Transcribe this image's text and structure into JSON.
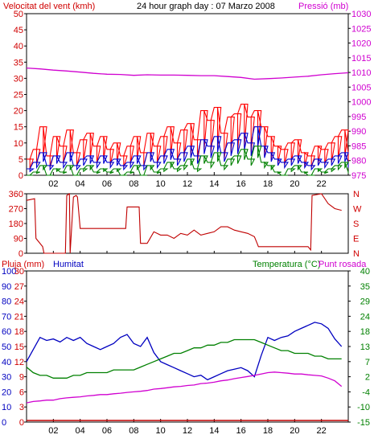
{
  "header": {
    "wind_label": "Velocitat del vent (kmh)",
    "title": "24 hour graph day : 07 Marzo 2008",
    "pressure_label": "Pressió (mb)"
  },
  "bottom_header": {
    "rain_label": "Pluja (mm)",
    "humidity_label": "Humitat",
    "temperature_label": "Temperatura (°C)",
    "dewpoint_label": "Punt rosada"
  },
  "colors": {
    "wind_gust": "#ff0000",
    "wind_avg": "#0000d0",
    "wind_min": "#008000",
    "pressure": "#d000d0",
    "direction": "#c00000",
    "humidity": "#0000c0",
    "temperature": "#008000",
    "dewpoint": "#d000d0",
    "rain": "#c00000"
  },
  "chart_data": [
    {
      "type": "line",
      "title": "24 hour graph day : 07 Marzo 2008",
      "ylabel": "Velocitat del vent (kmh)",
      "ylabel_right": "Pressió (mb)",
      "x_ticks": [
        "02",
        "04",
        "06",
        "08",
        "10",
        "12",
        "14",
        "16",
        "18",
        "20",
        "22"
      ],
      "ylim": [
        0,
        50
      ],
      "y_ticks": [
        0,
        5,
        10,
        15,
        20,
        25,
        30,
        35,
        40,
        45,
        50
      ],
      "ylim_right": [
        975,
        1030
      ],
      "y_ticks_right": [
        975,
        980,
        985,
        990,
        995,
        1000,
        1005,
        1010,
        1015,
        1020,
        1025,
        1030
      ],
      "xlim": [
        0,
        24
      ],
      "series": [
        {
          "name": "Pressió (mb)",
          "axis": "right",
          "x": [
            0,
            1,
            2,
            3,
            4,
            5,
            6,
            7,
            8,
            9,
            10,
            11,
            12,
            13,
            14,
            15,
            16,
            17,
            18,
            19,
            20,
            21,
            22,
            23,
            24
          ],
          "values": [
            1011.5,
            1011.2,
            1010.8,
            1010.5,
            1010.1,
            1009.7,
            1009.4,
            1009.3,
            1009.0,
            1009.2,
            1009.1,
            1009.1,
            1009.0,
            1008.9,
            1008.9,
            1008.6,
            1008.3,
            1007.7,
            1007.9,
            1008.1,
            1008.4,
            1008.7,
            1009.2,
            1009.6,
            1009.9
          ]
        },
        {
          "name": "gust",
          "axis": "left",
          "x": [
            0,
            0.5,
            1,
            1.5,
            2,
            2.5,
            3,
            3.5,
            4,
            4.5,
            5,
            5.5,
            6,
            6.5,
            7,
            7.5,
            8,
            8.5,
            9,
            9.5,
            10,
            10.5,
            11,
            11.5,
            12,
            12.5,
            13,
            13.5,
            14,
            14.5,
            15,
            15.5,
            16,
            16.5,
            17,
            17.5,
            18,
            18.5,
            19,
            19.5,
            20,
            20.5,
            21,
            21.5,
            22,
            22.5,
            23,
            23.5,
            24
          ],
          "values": [
            5,
            8,
            15,
            6,
            12,
            9,
            14,
            7,
            11,
            13,
            9,
            12,
            8,
            10,
            6,
            9,
            12,
            7,
            13,
            9,
            12,
            15,
            10,
            14,
            16,
            11,
            20,
            17,
            21,
            13,
            18,
            19,
            22,
            18,
            20,
            15,
            12,
            9,
            8,
            10,
            11,
            7,
            6,
            9,
            8,
            10,
            12,
            14,
            7
          ]
        },
        {
          "name": "avg",
          "axis": "left",
          "x": [
            0,
            0.5,
            1,
            1.5,
            2,
            2.5,
            3,
            3.5,
            4,
            4.5,
            5,
            5.5,
            6,
            6.5,
            7,
            7.5,
            8,
            8.5,
            9,
            9.5,
            10,
            10.5,
            11,
            11.5,
            12,
            12.5,
            13,
            13.5,
            14,
            14.5,
            15,
            15.5,
            16,
            16.5,
            17,
            17.5,
            18,
            18.5,
            19,
            19.5,
            20,
            20.5,
            21,
            21.5,
            22,
            22.5,
            23,
            23.5,
            24
          ],
          "values": [
            2,
            4,
            7,
            3,
            6,
            4,
            7,
            3,
            5,
            6,
            4,
            6,
            4,
            5,
            3,
            4,
            6,
            3,
            7,
            4,
            6,
            8,
            5,
            7,
            9,
            6,
            11,
            9,
            12,
            7,
            10,
            11,
            13,
            10,
            15,
            9,
            7,
            5,
            4,
            5,
            6,
            4,
            3,
            5,
            4,
            5,
            6,
            7,
            4
          ]
        },
        {
          "name": "min",
          "axis": "left",
          "x": [
            0,
            0.5,
            1,
            1.5,
            2,
            2.5,
            3,
            3.5,
            4,
            4.5,
            5,
            5.5,
            6,
            6.5,
            7,
            7.5,
            8,
            8.5,
            9,
            9.5,
            10,
            10.5,
            11,
            11.5,
            12,
            12.5,
            13,
            13.5,
            14,
            14.5,
            15,
            15.5,
            16,
            16.5,
            17,
            17.5,
            18,
            18.5,
            19,
            19.5,
            20,
            20.5,
            21,
            21.5,
            22,
            22.5,
            23,
            23.5,
            24
          ],
          "values": [
            0,
            1,
            3,
            0,
            2,
            1,
            3,
            0,
            2,
            3,
            1,
            2,
            1,
            2,
            0,
            1,
            3,
            0,
            3,
            1,
            2,
            4,
            2,
            3,
            5,
            2,
            6,
            4,
            7,
            3,
            5,
            6,
            8,
            5,
            9,
            4,
            3,
            1,
            0,
            2,
            3,
            1,
            0,
            2,
            1,
            2,
            3,
            4,
            1
          ]
        }
      ]
    },
    {
      "type": "line",
      "ylabel_right": [
        "N",
        "W",
        "S",
        "E",
        "N"
      ],
      "ylim": [
        0,
        360
      ],
      "y_ticks": [
        0,
        90,
        180,
        270,
        360
      ],
      "xlim": [
        0,
        24
      ],
      "series": [
        {
          "name": "wind direction",
          "x": [
            0,
            0.6,
            0.7,
            1.2,
            1.3,
            2.9,
            3.0,
            3.2,
            3.25,
            3.5,
            3.7,
            3.8,
            4.0,
            5.0,
            6.0,
            7.0,
            7.4,
            7.5,
            8.0,
            8.4,
            8.5,
            9.0,
            9.5,
            10.0,
            10.5,
            11.0,
            11.5,
            12.0,
            12.5,
            13.0,
            13.5,
            14.0,
            14.5,
            15.0,
            15.5,
            16.0,
            16.5,
            17.0,
            17.2,
            17.3,
            18.0,
            19.0,
            20.0,
            21.0,
            21.2,
            21.3,
            22.0,
            22.5,
            23.0,
            23.5
          ],
          "values": [
            320,
            330,
            90,
            40,
            0,
            0,
            350,
            360,
            0,
            340,
            350,
            340,
            150,
            150,
            150,
            150,
            150,
            280,
            280,
            280,
            60,
            60,
            130,
            110,
            110,
            90,
            120,
            110,
            140,
            110,
            120,
            130,
            160,
            160,
            140,
            130,
            120,
            100,
            60,
            40,
            40,
            40,
            40,
            40,
            20,
            350,
            360,
            300,
            270,
            260
          ]
        }
      ]
    },
    {
      "type": "line",
      "ylabel": "Pluja (mm)",
      "x_ticks": [
        "02",
        "04",
        "06",
        "08",
        "10",
        "12",
        "14",
        "16",
        "18",
        "20",
        "22"
      ],
      "xlim": [
        0,
        24
      ],
      "axis_left_humidity_ticks": [
        0,
        10,
        20,
        30,
        40,
        50,
        60,
        70,
        80,
        90,
        100
      ],
      "axis_left_rain_ticks": [
        0,
        3,
        6,
        9,
        12,
        15,
        18,
        21,
        24,
        27,
        30
      ],
      "axis_right_temperature_ticks": [
        -15,
        -10,
        -4,
        2,
        7,
        13,
        18,
        24,
        29,
        35,
        40
      ],
      "ylim_humidity": [
        0,
        100
      ],
      "ylim_temperature": [
        -15,
        40
      ],
      "series": [
        {
          "name": "Humitat",
          "axis": "humidity",
          "x": [
            0,
            0.5,
            1,
            1.5,
            2,
            2.5,
            3,
            3.5,
            4,
            4.5,
            5,
            5.5,
            6,
            6.5,
            7,
            7.5,
            8,
            8.5,
            9,
            9.5,
            10,
            10.5,
            11,
            11.5,
            12,
            12.5,
            13,
            13.5,
            14,
            14.5,
            15,
            15.5,
            16,
            16.5,
            17,
            17.5,
            18,
            18.5,
            19,
            19.5,
            20,
            20.5,
            21,
            21.5,
            22,
            22.5,
            23,
            23.5
          ],
          "values": [
            40,
            48,
            56,
            54,
            55,
            53,
            56,
            54,
            56,
            52,
            50,
            48,
            50,
            52,
            56,
            58,
            52,
            50,
            56,
            46,
            40,
            38,
            36,
            34,
            32,
            30,
            31,
            28,
            30,
            32,
            34,
            35,
            36,
            34,
            30,
            44,
            56,
            54,
            56,
            57,
            60,
            62,
            64,
            66,
            65,
            62,
            55,
            50
          ]
        },
        {
          "name": "Temperatura (°C)",
          "axis": "temperature",
          "x": [
            0,
            0.5,
            1,
            1.5,
            2,
            2.5,
            3,
            3.5,
            4,
            4.5,
            5,
            5.5,
            6,
            6.5,
            7,
            7.5,
            8,
            8.5,
            9,
            9.5,
            10,
            10.5,
            11,
            11.5,
            12,
            12.5,
            13,
            13.5,
            14,
            14.5,
            15,
            15.5,
            16,
            16.5,
            17,
            17.5,
            18,
            18.5,
            19,
            19.5,
            20,
            20.5,
            21,
            21.5,
            22,
            22.5,
            23,
            23.5
          ],
          "values": [
            5,
            3,
            2,
            2,
            1,
            1,
            1,
            2,
            2,
            3,
            3,
            3,
            3,
            4,
            4,
            4,
            4,
            5,
            6,
            7,
            8,
            9,
            10,
            10,
            11,
            12,
            12,
            13,
            13,
            14,
            14,
            15,
            15,
            15,
            15,
            14,
            13,
            12,
            11,
            11,
            10,
            10,
            10,
            9,
            9,
            8,
            8,
            8
          ]
        },
        {
          "name": "Punt rosada",
          "axis": "temperature",
          "x": [
            0,
            0.5,
            1,
            1.5,
            2,
            2.5,
            3,
            3.5,
            4,
            4.5,
            5,
            5.5,
            6,
            6.5,
            7,
            7.5,
            8,
            8.5,
            9,
            9.5,
            10,
            10.5,
            11,
            11.5,
            12,
            12.5,
            13,
            13.5,
            14,
            14.5,
            15,
            15.5,
            16,
            16.5,
            17,
            17.5,
            18,
            18.5,
            19,
            19.5,
            20,
            20.5,
            21,
            21.5,
            22,
            22.5,
            23,
            23.5
          ],
          "values": [
            -8,
            -7.5,
            -7.3,
            -7,
            -7,
            -6.5,
            -6.2,
            -6,
            -5.8,
            -5.5,
            -5.3,
            -5,
            -5,
            -4.7,
            -4.5,
            -4.2,
            -4,
            -3.8,
            -3.5,
            -3,
            -2.8,
            -2.5,
            -2.2,
            -2,
            -1.7,
            -1.5,
            -1,
            -0.8,
            -0.5,
            0,
            0.3,
            0.8,
            1.2,
            1.6,
            2,
            2.5,
            3,
            3.2,
            3,
            2.8,
            2.5,
            2.5,
            2.2,
            2,
            1.8,
            1,
            0,
            -2
          ]
        },
        {
          "name": "Pluja (mm)",
          "axis": "rain",
          "x": [
            0,
            24
          ],
          "values": [
            0,
            0
          ]
        }
      ]
    }
  ]
}
